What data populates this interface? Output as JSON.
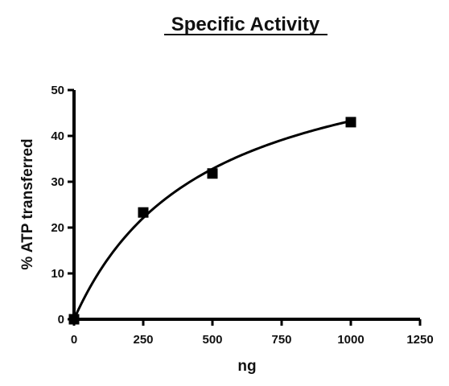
{
  "chart_data": {
    "type": "scatter",
    "title": "Specific Activity",
    "xlabel": "ng",
    "ylabel": "% ATP transferred",
    "xlim": [
      0,
      1250
    ],
    "ylim": [
      0,
      50
    ],
    "x_ticks": [
      "0",
      "250",
      "500",
      "750",
      "1000",
      "1250"
    ],
    "y_ticks": [
      "0",
      "10",
      "20",
      "30",
      "40",
      "50"
    ],
    "series": [
      {
        "points": [
          {
            "x": 0,
            "y": 0
          },
          {
            "x": 250,
            "y": 23.3
          },
          {
            "x": 500,
            "y": 31.8
          },
          {
            "x": 1000,
            "y": 43.0
          }
        ],
        "marker": "square",
        "color": "#000000"
      }
    ],
    "fit_curve": {
      "type": "hyperbola",
      "ymax": 63.5,
      "k": 468,
      "x_range": [
        0,
        1000
      ],
      "color": "#000000"
    },
    "grid": false,
    "legend": "none"
  }
}
